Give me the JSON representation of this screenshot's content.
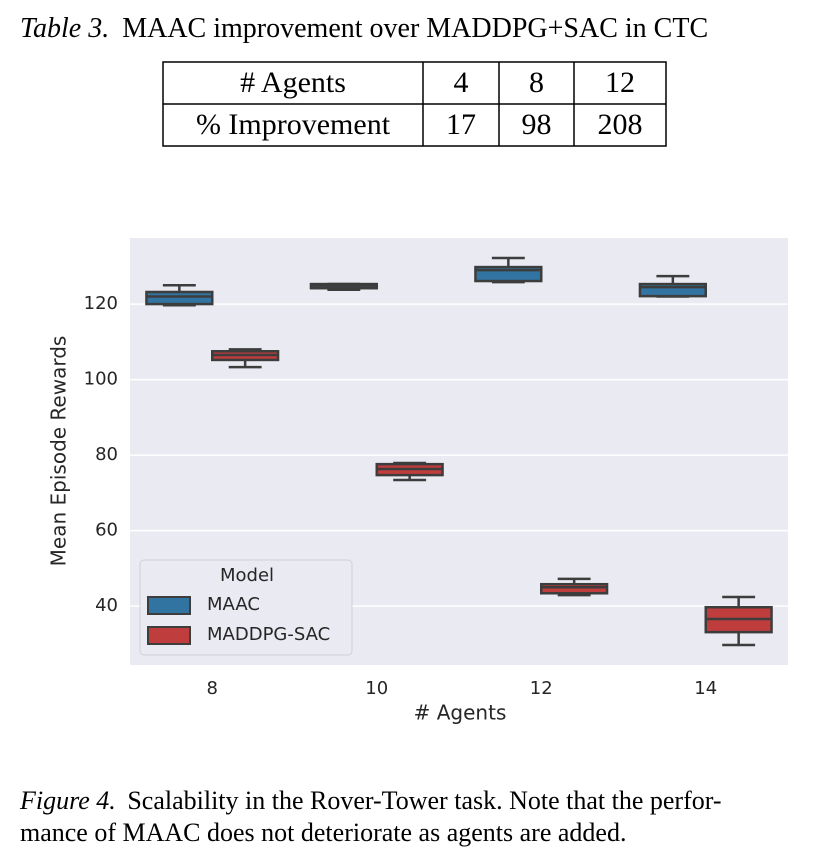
{
  "table": {
    "label": "Table 3.",
    "caption": "MAAC improvement over MADDPG+SAC in CTC",
    "rows": [
      [
        "# Agents",
        "4",
        "8",
        "12"
      ],
      [
        "% Improvement",
        "17",
        "98",
        "208"
      ]
    ]
  },
  "chart_data": {
    "type": "box",
    "xlabel": "# Agents",
    "ylabel": "Mean Episode Rewards",
    "categories": [
      "8",
      "10",
      "12",
      "14"
    ],
    "series": [
      {
        "name": "MAAC",
        "color": "#3274a1",
        "values": [
          {
            "min": 119.7,
            "q1": 120,
            "median": 122,
            "q3": 123.2,
            "max": 125
          },
          {
            "min": 123.8,
            "q1": 124.2,
            "median": 124.9,
            "q3": 125.3,
            "max": 125.3
          },
          {
            "min": 125.8,
            "q1": 126.1,
            "median": 129,
            "q3": 129.8,
            "max": 132.2
          },
          {
            "min": 122,
            "q1": 122.1,
            "median": 124.5,
            "q3": 125.3,
            "max": 127.4
          }
        ]
      },
      {
        "name": "MADDPG-SAC",
        "color": "#c03d3e",
        "values": [
          {
            "min": 103.3,
            "q1": 105.2,
            "median": 106.5,
            "q3": 107.5,
            "max": 108
          },
          {
            "min": 73.4,
            "q1": 74.7,
            "median": 76.3,
            "q3": 77.6,
            "max": 77.9
          },
          {
            "min": 42.9,
            "q1": 43.4,
            "median": 45,
            "q3": 45.8,
            "max": 47.2
          },
          {
            "min": 29.7,
            "q1": 33.1,
            "median": 36.6,
            "q3": 39.7,
            "max": 42.4
          }
        ]
      }
    ],
    "ylim": [
      24.4,
      137.5
    ],
    "yticks": [
      40,
      60,
      80,
      100,
      120
    ],
    "grid": true,
    "legend_title": "Model",
    "legend": "lower left"
  },
  "figure_caption": {
    "label": "Figure 4.",
    "lines": [
      "Scalability in the Rover-Tower task. Note that the perfor-",
      "mance of MAAC does not deteriorate as agents are added."
    ]
  }
}
